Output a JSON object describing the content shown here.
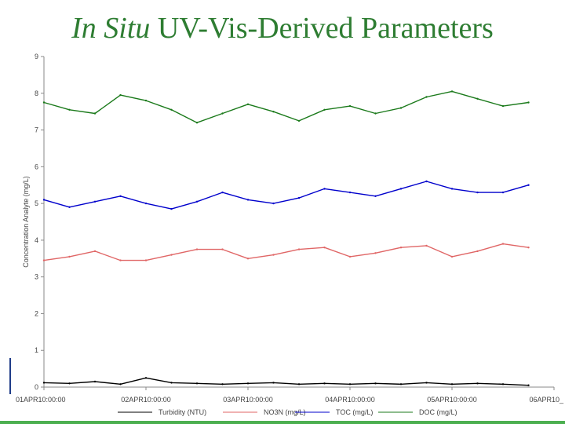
{
  "title": {
    "italic": "In Situ",
    "rest": " UV-Vis-Derived Parameters"
  },
  "chart_data": {
    "type": "line",
    "title": "In Situ UV-Vis-Derived Parameters",
    "ylabel": "Concentration Analyte (mg/L)",
    "xlabel": "",
    "ylim": [
      0,
      9
    ],
    "yticks": [
      "0",
      "1",
      "2",
      "3",
      "4",
      "5",
      "6",
      "7",
      "8",
      "9"
    ],
    "xlim": [
      "2010-04-01T00:00",
      "2010-04-06T00:00"
    ],
    "xticks": [
      "01APR10:00:00",
      "02APR10:00:00",
      "03APR10:00:00",
      "04APR10:00:00",
      "05APR10:00:00",
      "06APR10_"
    ],
    "grid": false,
    "legend_position": "bottom",
    "x": [
      "2010-04-01T00:00",
      "2010-04-01T06:00",
      "2010-04-01T12:00",
      "2010-04-01T18:00",
      "2010-04-02T00:00",
      "2010-04-02T06:00",
      "2010-04-02T12:00",
      "2010-04-02T18:00",
      "2010-04-03T00:00",
      "2010-04-03T06:00",
      "2010-04-03T12:00",
      "2010-04-03T18:00",
      "2010-04-04T00:00",
      "2010-04-04T06:00",
      "2010-04-04T12:00",
      "2010-04-04T18:00",
      "2010-04-05T00:00",
      "2010-04-05T06:00",
      "2010-04-05T12:00",
      "2010-04-05T18:00"
    ],
    "series": [
      {
        "name": "Turbidity (NTU)",
        "color": "#000000",
        "values": [
          0.12,
          0.1,
          0.15,
          0.08,
          0.25,
          0.12,
          0.1,
          0.08,
          0.1,
          0.12,
          0.08,
          0.1,
          0.08,
          0.1,
          0.08,
          0.12,
          0.08,
          0.1,
          0.08,
          0.05
        ]
      },
      {
        "name": "NO3N (mg/L)",
        "color": "#e06666",
        "values": [
          3.45,
          3.55,
          3.7,
          3.45,
          3.45,
          3.6,
          3.75,
          3.75,
          3.5,
          3.6,
          3.75,
          3.8,
          3.55,
          3.65,
          3.8,
          3.85,
          3.55,
          3.7,
          3.9,
          3.8
        ]
      },
      {
        "name": "TOC (mg/L)",
        "color": "#0000cc",
        "values": [
          5.1,
          4.9,
          5.05,
          5.2,
          5.0,
          4.85,
          5.05,
          5.3,
          5.1,
          5.0,
          5.15,
          5.4,
          5.3,
          5.2,
          5.4,
          5.6,
          5.4,
          5.3,
          5.3,
          5.5
        ]
      },
      {
        "name": "DOC (mg/L)",
        "color": "#1b7a1b",
        "values": [
          7.75,
          7.55,
          7.45,
          7.95,
          7.8,
          7.55,
          7.2,
          7.45,
          7.7,
          7.5,
          7.25,
          7.55,
          7.65,
          7.45,
          7.6,
          7.9,
          8.05,
          7.85,
          7.65,
          7.75
        ]
      }
    ]
  }
}
